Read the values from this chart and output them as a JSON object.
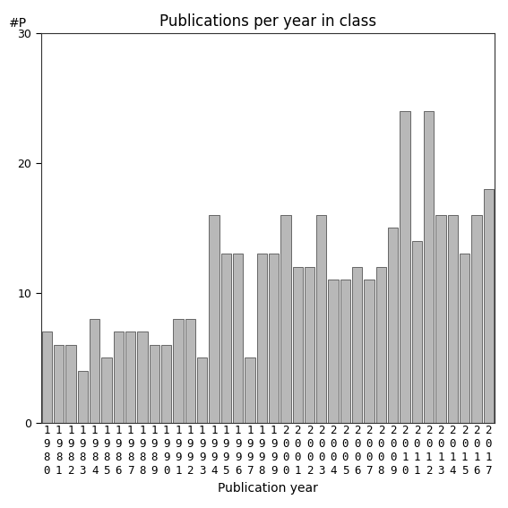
{
  "title": "Publications per year in class",
  "xlabel": "Publication year",
  "ylabel": "#P",
  "years": [
    "1980",
    "1981",
    "1982",
    "1983",
    "1984",
    "1985",
    "1986",
    "1987",
    "1988",
    "1989",
    "1990",
    "1991",
    "1992",
    "1993",
    "1994",
    "1995",
    "1996",
    "1997",
    "1998",
    "1999",
    "2000",
    "2001",
    "2002",
    "2003",
    "2004",
    "2005",
    "2006",
    "2007",
    "2008",
    "2009",
    "2010",
    "2011",
    "2012",
    "2013",
    "2014",
    "2015",
    "2016",
    "2017"
  ],
  "values": [
    7,
    6,
    6,
    4,
    8,
    5,
    7,
    7,
    7,
    6,
    6,
    8,
    8,
    5,
    16,
    13,
    13,
    5,
    13,
    13,
    16,
    12,
    12,
    16,
    11,
    11,
    12,
    11,
    12,
    15,
    24,
    14,
    24,
    16,
    16,
    13,
    16,
    18
  ],
  "bar_color": "#b8b8b8",
  "bar_edge_color": "#555555",
  "ylim": [
    0,
    30
  ],
  "yticks": [
    0,
    10,
    20,
    30
  ],
  "bg_color": "#ffffff",
  "title_fontsize": 12,
  "label_fontsize": 10,
  "tick_fontsize": 9
}
